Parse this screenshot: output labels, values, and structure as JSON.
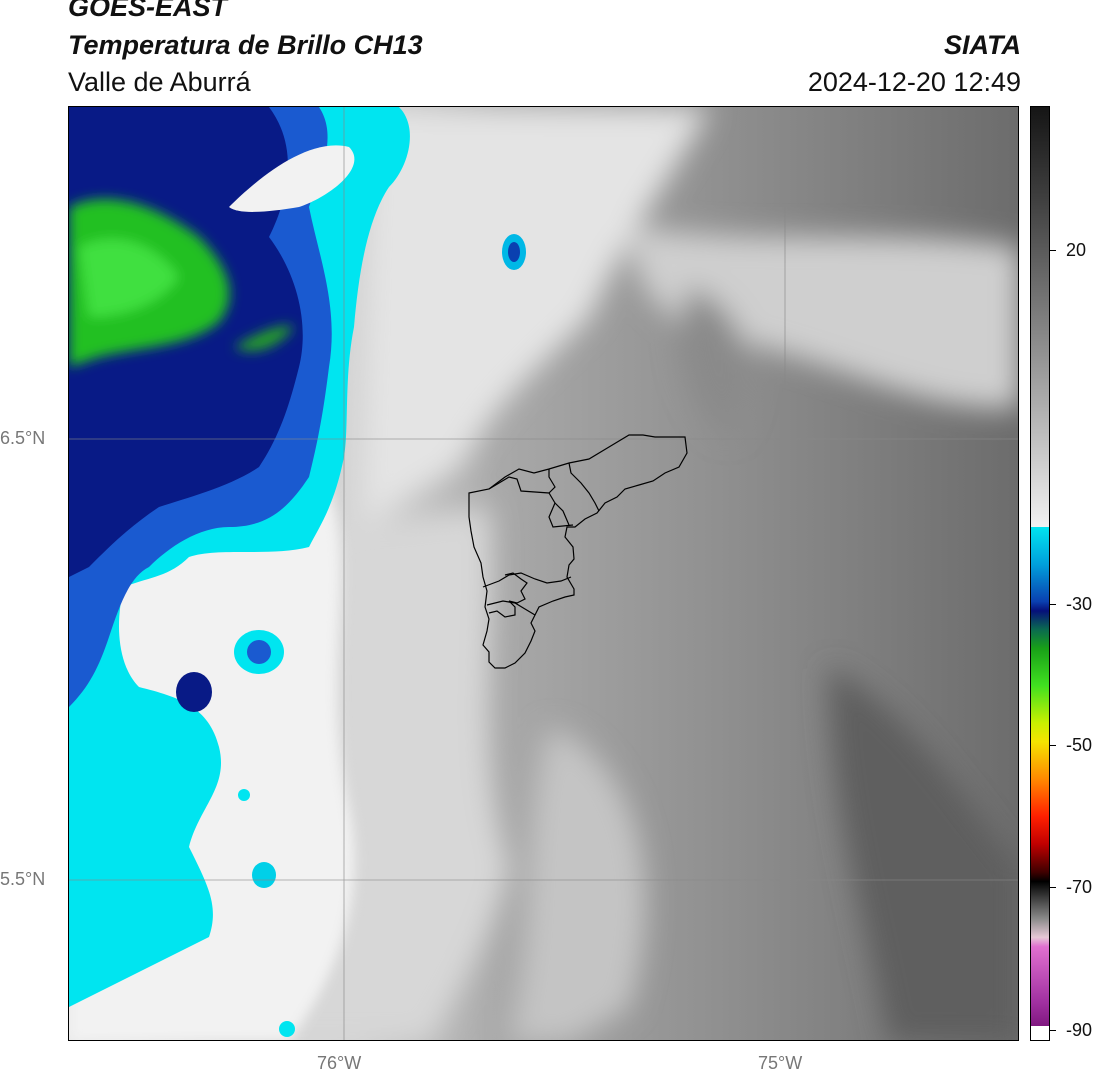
{
  "header": {
    "title": "GOES-EAST",
    "subtitle": "Temperatura de Brillo CH13",
    "region": "Valle de Aburrá",
    "brand": "SIATA",
    "timestamp": "2024-12-20 12:49"
  },
  "map": {
    "lat_labels": [
      "6.5°N",
      "5.5°N"
    ],
    "lon_labels": [
      "76°W",
      "75°W"
    ],
    "gridlines": true,
    "boundary": "Valle de Aburrá municipalities outline"
  },
  "colorbar": {
    "tick_labels": [
      "20",
      "-30",
      "-50",
      "-70",
      "-90"
    ],
    "colors": {
      "warm_gray_top": "#1c1c1c",
      "light_gray": "#ececec",
      "cyan": "#00e5f0",
      "blue": "#0a40b0",
      "navy": "#06107a",
      "green": "#18c018",
      "yellow": "#f4e400",
      "orange": "#ff8a00",
      "red": "#f00000",
      "dark_red": "#500000",
      "magenta": "#e070d0",
      "purple": "#8a1a8a"
    }
  }
}
